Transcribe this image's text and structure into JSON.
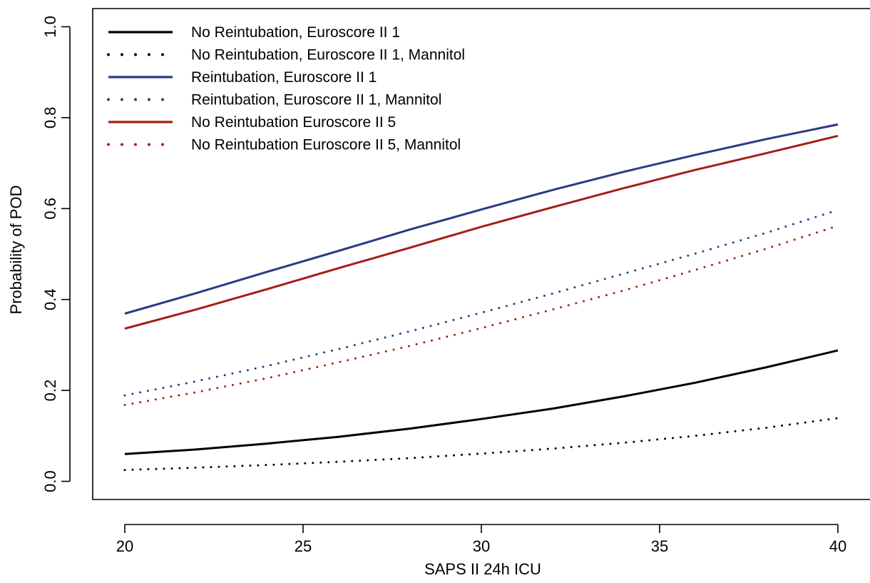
{
  "chart_data": {
    "type": "line",
    "title": "",
    "xlabel": "SAPS II 24h ICU",
    "ylabel": "Probability of POD",
    "xlim": [
      19.1,
      41.0
    ],
    "ylim": [
      -0.04,
      1.04
    ],
    "xticks": [
      20,
      25,
      30,
      35,
      40
    ],
    "xtick_labels": [
      "20",
      "25",
      "30",
      "35",
      "40"
    ],
    "yticks": [
      0.0,
      0.2,
      0.4,
      0.6,
      0.8,
      1.0
    ],
    "ytick_labels": [
      "0.0",
      "0.2",
      "0.4",
      "0.6",
      "0.8",
      "1.0"
    ],
    "grid": false,
    "legend_position": "top-left",
    "x": [
      20,
      22,
      24,
      26,
      28,
      30,
      32,
      34,
      36,
      38,
      40
    ],
    "series": [
      {
        "name": "No Reintubation, Euroscore II 1",
        "color": "#000000",
        "style": "solid",
        "values": [
          0.06,
          0.07,
          0.083,
          0.098,
          0.116,
          0.137,
          0.16,
          0.187,
          0.217,
          0.251,
          0.288
        ]
      },
      {
        "name": "No Reintubation, Euroscore II 1, Mannitol",
        "color": "#000000",
        "style": "dotted",
        "values": [
          0.025,
          0.03,
          0.036,
          0.043,
          0.051,
          0.061,
          0.072,
          0.085,
          0.1,
          0.118,
          0.139
        ]
      },
      {
        "name": "Reintubation, Euroscore II 1",
        "color": "#2b3a86",
        "style": "solid",
        "values": [
          0.369,
          0.414,
          0.461,
          0.507,
          0.554,
          0.598,
          0.641,
          0.681,
          0.718,
          0.753,
          0.785
        ]
      },
      {
        "name": "Reintubation, Euroscore II 1, Mannitol",
        "color": "#2b3a86",
        "style": "dotted",
        "values": [
          0.189,
          0.22,
          0.254,
          0.291,
          0.33,
          0.371,
          0.413,
          0.457,
          0.501,
          0.547,
          0.597
        ]
      },
      {
        "name": "No Reintubation Euroscore II 5",
        "color": "#a31f16",
        "style": "solid",
        "values": [
          0.336,
          0.378,
          0.423,
          0.469,
          0.514,
          0.56,
          0.603,
          0.645,
          0.685,
          0.722,
          0.76
        ]
      },
      {
        "name": "No Reintubation Euroscore II 5, Mannitol",
        "color": "#a31f16",
        "style": "dotted",
        "values": [
          0.168,
          0.196,
          0.227,
          0.262,
          0.298,
          0.337,
          0.378,
          0.42,
          0.465,
          0.512,
          0.562
        ]
      }
    ]
  }
}
